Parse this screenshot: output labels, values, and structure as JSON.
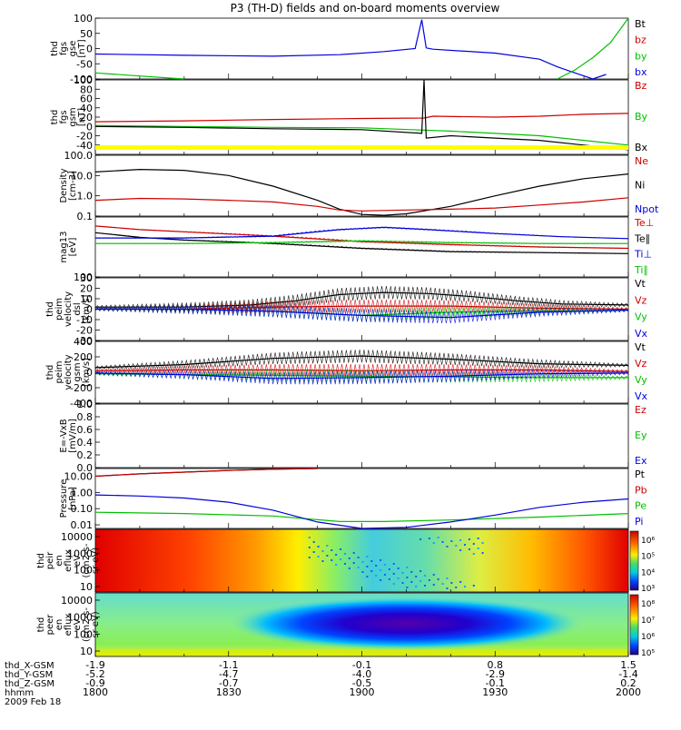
{
  "title": "P3 (TH-D) fields and on-board moments overview",
  "colors": {
    "black": "#000000",
    "red": "#cc0000",
    "green": "#00c000",
    "blue": "#0000dd",
    "yellow": "#ffff00"
  },
  "chart_data": {
    "type": "line",
    "title": "P3 (TH-D) fields and on-board moments overview",
    "x_axis": {
      "rows": [
        {
          "label": "thd_X-GSM",
          "values": [
            "-1.9",
            "-1.1",
            "-0.1",
            "0.8",
            "1.5"
          ]
        },
        {
          "label": "thd_Y-GSM",
          "values": [
            "-5.2",
            "-4.7",
            "-4.0",
            "-2.9",
            "-1.4"
          ]
        },
        {
          "label": "thd_Z-GSM",
          "values": [
            "-0.9",
            "-0.7",
            "-0.5",
            "-0.1",
            "0.2"
          ]
        },
        {
          "label": "hhmm",
          "values": [
            "1800",
            "1830",
            "1900",
            "1930",
            "2000"
          ]
        }
      ],
      "date": "2009 Feb 18",
      "range_minutes": [
        0,
        120
      ]
    },
    "panels": [
      {
        "id": "fgs-gse",
        "ylabel_lines": [
          "thd",
          "fgs",
          "gse",
          "[nT]"
        ],
        "ylim": [
          -100,
          100
        ],
        "ticks": [
          "100",
          "50",
          "0",
          "-50",
          "-100"
        ],
        "legend": [
          {
            "label": "Bt",
            "color": "black"
          },
          {
            "label": "bz",
            "color": "red"
          },
          {
            "label": "by",
            "color": "green"
          },
          {
            "label": "bx",
            "color": "blue"
          }
        ],
        "series": [
          {
            "name": "bx",
            "color": "blue",
            "x": [
              0,
              20,
              40,
              55,
              65,
              72,
              73.5,
              74.5,
              76,
              90,
              100,
              104,
              108,
              112,
              115
            ],
            "y": [
              -18,
              -22,
              -25,
              -20,
              -10,
              0,
              95,
              2,
              -2,
              -15,
              -35,
              -60,
              -80,
              -100,
              -85
            ]
          },
          {
            "name": "by",
            "color": "green",
            "x": [
              0,
              10,
              20
            ],
            "y": [
              -80,
              -90,
              -100
            ]
          },
          {
            "name": "by-late",
            "color": "green",
            "x": [
              104,
              108,
              112,
              116,
              120
            ],
            "y": [
              -100,
              -70,
              -30,
              20,
              100
            ]
          }
        ]
      },
      {
        "id": "fgs-gsm",
        "ylabel_lines": [
          "thd",
          "fgs",
          "gsm",
          "[nT]"
        ],
        "ylim": [
          -60,
          100
        ],
        "ticks": [
          "100",
          "80",
          "60",
          "40",
          "20",
          "0",
          "-20",
          "-40"
        ],
        "legend": [
          {
            "label": "Bz",
            "color": "red"
          },
          {
            "label": "By",
            "color": "green"
          },
          {
            "label": "Bx",
            "color": "black"
          }
        ],
        "series": [
          {
            "name": "Bz",
            "color": "red",
            "x": [
              0,
              20,
              40,
              60,
              74,
              76,
              90,
              100,
              110,
              120
            ],
            "y": [
              10,
              12,
              15,
              17,
              18,
              22,
              20,
              22,
              26,
              28
            ]
          },
          {
            "name": "By",
            "color": "green",
            "x": [
              0,
              20,
              40,
              60,
              74,
              80,
              90,
              100,
              110,
              120
            ],
            "y": [
              2,
              0,
              -2,
              -3,
              -8,
              -10,
              -15,
              -20,
              -30,
              -40
            ]
          },
          {
            "name": "Bx",
            "color": "black",
            "x": [
              0,
              20,
              40,
              60,
              73.5,
              74,
              74.5,
              80,
              90,
              100,
              110,
              120
            ],
            "y": [
              0,
              -2,
              -5,
              -7,
              -15,
              100,
              -25,
              -20,
              -25,
              -30,
              -40,
              -50
            ]
          }
        ],
        "flag_bar": "yellow"
      },
      {
        "id": "density",
        "ylabel_lines": [
          "Density",
          "[cm-3]"
        ],
        "log": true,
        "ylim": [
          0.1,
          100
        ],
        "ticks": [
          "100.0",
          "10.0",
          "1.0",
          "0.1"
        ],
        "legend": [
          {
            "label": "Ne",
            "color": "red"
          },
          {
            "label": "Ni",
            "color": "black"
          },
          {
            "label": "Npot",
            "color": "blue"
          }
        ],
        "series": [
          {
            "name": "Ni",
            "color": "black",
            "x": [
              0,
              10,
              20,
              30,
              40,
              50,
              55,
              60,
              65,
              70,
              80,
              90,
              100,
              110,
              120
            ],
            "y": [
              15,
              20,
              18,
              10,
              3,
              0.6,
              0.22,
              0.12,
              0.11,
              0.13,
              0.3,
              1,
              3,
              7,
              12
            ]
          },
          {
            "name": "Ne",
            "color": "red",
            "x": [
              0,
              10,
              20,
              30,
              40,
              50,
              55,
              60,
              70,
              80,
              90,
              100,
              110,
              120
            ],
            "y": [
              0.6,
              0.75,
              0.7,
              0.6,
              0.5,
              0.3,
              0.2,
              0.18,
              0.2,
              0.22,
              0.25,
              0.35,
              0.5,
              0.8
            ]
          }
        ]
      },
      {
        "id": "temperature",
        "ylabel_lines": [
          "mag13",
          "[eV]"
        ],
        "log": true,
        "ylim": [
          100,
          10000
        ],
        "ticks": [
          "100"
        ],
        "legend": [
          {
            "label": "Te⊥",
            "color": "red"
          },
          {
            "label": "Te∥",
            "color": "black"
          },
          {
            "label": "Ti⊥",
            "color": "blue"
          },
          {
            "label": "Ti∥",
            "color": "green"
          }
        ],
        "series": [
          {
            "name": "Te⊥",
            "color": "red",
            "x": [
              0,
              10,
              20,
              40,
              60,
              80,
              100,
              120
            ],
            "y": [
              5000,
              3800,
              3200,
              2300,
              1500,
              1200,
              1000,
              900
            ]
          },
          {
            "name": "Te∥",
            "color": "black",
            "x": [
              0,
              10,
              20,
              40,
              60,
              80,
              100,
              120
            ],
            "y": [
              3000,
              2100,
              1700,
              1300,
              900,
              700,
              650,
              600
            ]
          },
          {
            "name": "Ti⊥",
            "color": "blue",
            "x": [
              0,
              20,
              40,
              55,
              65,
              75,
              90,
              105,
              120
            ],
            "y": [
              2000,
              2000,
              2300,
              3800,
              4500,
              3800,
              2800,
              2200,
              1900
            ]
          },
          {
            "name": "Ti∥",
            "color": "green",
            "x": [
              0,
              20,
              40,
              60,
              80,
              100,
              120
            ],
            "y": [
              1300,
              1300,
              1400,
              1600,
              1400,
              1300,
              1300
            ]
          }
        ]
      },
      {
        "id": "velocity-dsl",
        "ylabel_lines": [
          "thd",
          "peim",
          "velocity",
          "dsl",
          "[km/s]"
        ],
        "ylim": [
          -30,
          30
        ],
        "ticks": [
          "30",
          "20",
          "10",
          "0",
          "-10",
          "-20",
          "-30"
        ],
        "legend": [
          {
            "label": "Vt",
            "color": "black"
          },
          {
            "label": "Vz",
            "color": "red"
          },
          {
            "label": "Vy",
            "color": "green"
          },
          {
            "label": "Vx",
            "color": "blue"
          }
        ],
        "series": [
          {
            "name": "Vt",
            "color": "black",
            "x": [
              0,
              20,
              35,
              45,
              55,
              65,
              75,
              85,
              95,
              105,
              120
            ],
            "y": [
              2,
              2,
              4,
              8,
              14,
              16,
              15,
              12,
              8,
              5,
              4
            ]
          },
          {
            "name": "Vz",
            "color": "red",
            "x": [
              0,
              20,
              40,
              60,
              80,
              100,
              120
            ],
            "y": [
              0,
              0,
              2,
              3,
              3,
              1,
              0
            ]
          },
          {
            "name": "Vy",
            "color": "green",
            "x": [
              0,
              20,
              40,
              60,
              80,
              100,
              120
            ],
            "y": [
              0,
              0,
              -2,
              -6,
              -3,
              -2,
              -1
            ]
          },
          {
            "name": "Vx",
            "color": "blue",
            "x": [
              0,
              20,
              40,
              60,
              80,
              100,
              120
            ],
            "y": [
              0,
              0,
              -2,
              -6,
              -8,
              -3,
              -1
            ]
          }
        ]
      },
      {
        "id": "velocity-gsm",
        "ylabel_lines": [
          "thd",
          "peim",
          "velocity",
          "gsm",
          "[km/s]"
        ],
        "ylim": [
          -400,
          400
        ],
        "ticks": [
          "400",
          "200",
          "0",
          "-200",
          "-400"
        ],
        "legend": [
          {
            "label": "Vt",
            "color": "black"
          },
          {
            "label": "Vz",
            "color": "red"
          },
          {
            "label": "Vy",
            "color": "green"
          },
          {
            "label": "Vx",
            "color": "blue"
          }
        ],
        "series": [
          {
            "name": "Vt",
            "color": "black",
            "x": [
              0,
              20,
              40,
              60,
              80,
              100,
              120
            ],
            "y": [
              60,
              100,
              180,
              210,
              170,
              110,
              90
            ]
          },
          {
            "name": "Vz",
            "color": "red",
            "x": [
              0,
              20,
              40,
              60,
              80,
              100,
              120
            ],
            "y": [
              20,
              30,
              30,
              20,
              30,
              30,
              10
            ]
          },
          {
            "name": "Vy",
            "color": "green",
            "x": [
              0,
              20,
              40,
              60,
              80,
              100,
              120
            ],
            "y": [
              -20,
              -30,
              -40,
              -50,
              -60,
              -70,
              -70
            ]
          },
          {
            "name": "Vx",
            "color": "blue",
            "x": [
              0,
              20,
              40,
              60,
              80,
              100,
              120
            ],
            "y": [
              -10,
              -30,
              -80,
              -70,
              -50,
              -20,
              -10
            ]
          }
        ]
      },
      {
        "id": "efield",
        "ylabel_lines": [
          "E=-VxB",
          "[mV/m]"
        ],
        "ylim": [
          0,
          1
        ],
        "ticks": [
          "1.0",
          "0.8",
          "0.6",
          "0.4",
          "0.2",
          "0.0"
        ],
        "legend": [
          {
            "label": "Ez",
            "color": "red"
          },
          {
            "label": "Ey",
            "color": "green"
          },
          {
            "label": "Ex",
            "color": "blue"
          }
        ],
        "series": []
      },
      {
        "id": "pressure",
        "ylabel_lines": [
          "Pressure",
          "[nPa]"
        ],
        "log": true,
        "ylim": [
          0.006,
          30
        ],
        "ticks": [
          "10.00",
          "1.00",
          "0.10",
          "0.01"
        ],
        "legend": [
          {
            "label": "Pt",
            "color": "black"
          },
          {
            "label": "Pb",
            "color": "red"
          },
          {
            "label": "Pe",
            "color": "green"
          },
          {
            "label": "Pi",
            "color": "blue"
          }
        ],
        "series": [
          {
            "name": "Pt",
            "color": "black",
            "x": [
              0,
              10,
              20,
              30,
              40,
              50
            ],
            "y": [
              10,
              14,
              18,
              23,
              27,
              30
            ]
          },
          {
            "name": "Pb",
            "color": "red",
            "x": [
              0,
              10,
              20,
              30,
              40,
              50
            ],
            "y": [
              10,
              14,
              18,
              23,
              27,
              30
            ]
          },
          {
            "name": "Pe",
            "color": "green",
            "x": [
              0,
              20,
              40,
              55,
              65,
              80,
              100,
              120
            ],
            "y": [
              0.06,
              0.05,
              0.035,
              0.016,
              0.016,
              0.02,
              0.03,
              0.05
            ]
          },
          {
            "name": "Pi",
            "color": "blue",
            "x": [
              0,
              10,
              20,
              30,
              40,
              50,
              60,
              70,
              80,
              90,
              100,
              110,
              120
            ],
            "y": [
              0.7,
              0.6,
              0.45,
              0.25,
              0.08,
              0.015,
              0.006,
              0.007,
              0.015,
              0.04,
              0.12,
              0.25,
              0.4
            ]
          }
        ]
      },
      {
        "id": "ion-spec",
        "type": "heatmap",
        "ylabel_lines": [
          "thd",
          "peir",
          "en",
          "eflux",
          "eV",
          "(cm2-s-",
          "sr-eV)"
        ],
        "ticks": [
          "10000",
          "1000",
          "100",
          "10"
        ],
        "colorbar_ticks": [
          "10⁶",
          "10⁵",
          "10⁴",
          "10³"
        ]
      },
      {
        "id": "electron-spec",
        "type": "heatmap",
        "ylabel_lines": [
          "thd",
          "peer",
          "en",
          "eflux",
          "eV",
          "(cm2-s-",
          "sr-eV)"
        ],
        "ticks": [
          "10000",
          "1000",
          "100",
          "10"
        ],
        "colorbar_ticks": [
          "10⁸",
          "10⁷",
          "10⁶",
          "10⁵"
        ]
      }
    ]
  }
}
